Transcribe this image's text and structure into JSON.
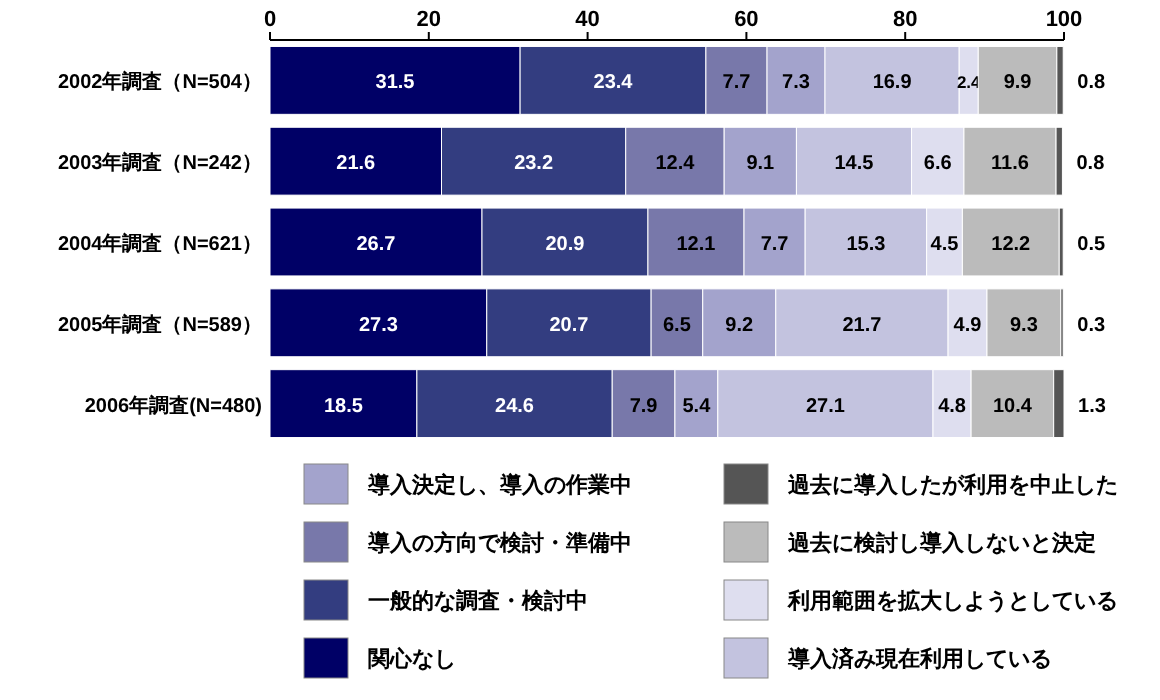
{
  "chart_data": {
    "type": "bar",
    "orientation": "horizontal",
    "stacked": true,
    "data_labels": true,
    "legend": "bottom",
    "grid": false,
    "categories": [
      "2002年調査（N=504）",
      "2003年調査（N=242）",
      "2004年調査（N=621）",
      "2005年調査（N=589）",
      "2006年調査(N=480)"
    ],
    "xlim": [
      0,
      100
    ],
    "xticks": [
      0,
      20,
      40,
      60,
      80,
      100
    ],
    "series": [
      {
        "name": "関心なし",
        "color": "#000066",
        "values": [
          31.5,
          21.6,
          26.7,
          27.3,
          18.5
        ]
      },
      {
        "name": "一般的な調査・検討中",
        "color": "#333d80",
        "values": [
          23.4,
          23.2,
          20.9,
          20.7,
          24.6
        ]
      },
      {
        "name": "導入の方向で検討・準備中",
        "color": "#7878aa",
        "values": [
          7.7,
          12.4,
          12.1,
          6.5,
          7.9
        ]
      },
      {
        "name": "導入決定し、導入の作業中",
        "color": "#a3a3cc",
        "values": [
          7.3,
          9.1,
          7.7,
          9.2,
          5.4
        ]
      },
      {
        "name": "導入済み現在利用している",
        "color": "#c3c3df",
        "values": [
          16.9,
          14.5,
          15.3,
          21.7,
          27.1
        ]
      },
      {
        "name": "利用範囲を拡大しようとしている",
        "color": "#dedeef",
        "values": [
          2.4,
          6.6,
          4.5,
          4.9,
          4.8
        ]
      },
      {
        "name": "過去に検討し導入しないと決定",
        "color": "#bbbbbb",
        "values": [
          9.9,
          11.6,
          12.2,
          9.3,
          10.4
        ]
      },
      {
        "name": "過去に導入したが利用を中止した",
        "color": "#555555",
        "values": [
          0.8,
          0.8,
          0.5,
          0.3,
          1.3
        ]
      }
    ]
  }
}
